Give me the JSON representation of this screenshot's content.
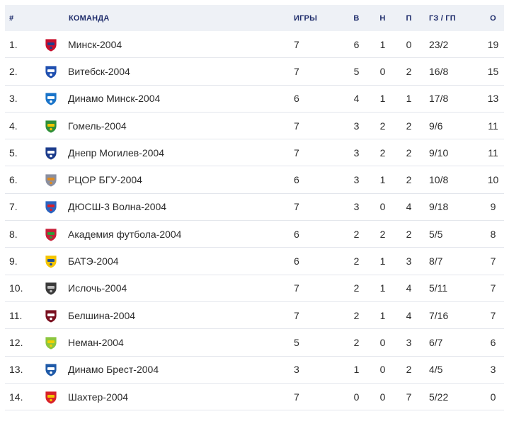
{
  "header": {
    "pos": "#",
    "team": "КОМАНДА",
    "games": "ИГРЫ",
    "wins": "В",
    "draws": "Н",
    "losses": "П",
    "goals": "ГЗ / ГП",
    "points": "О"
  },
  "rows": [
    {
      "pos": "1.",
      "team": "Минск-2004",
      "games": "7",
      "w": "6",
      "d": "1",
      "l": "0",
      "goals": "23/2",
      "pts": "19",
      "logo_color": "#c8102e",
      "logo_accent": "#1d3f8f",
      "logo_icon": "minsk-crest-icon"
    },
    {
      "pos": "2.",
      "team": "Витебск-2004",
      "games": "7",
      "w": "5",
      "d": "0",
      "l": "2",
      "goals": "16/8",
      "pts": "15",
      "logo_color": "#2050b0",
      "logo_accent": "#ffffff",
      "logo_icon": "vitebsk-crest-icon"
    },
    {
      "pos": "3.",
      "team": "Динамо Минск-2004",
      "games": "6",
      "w": "4",
      "d": "1",
      "l": "1",
      "goals": "17/8",
      "pts": "13",
      "logo_color": "#1a74c9",
      "logo_accent": "#ffffff",
      "logo_icon": "dinamo-minsk-crest-icon"
    },
    {
      "pos": "4.",
      "team": "Гомель-2004",
      "games": "7",
      "w": "3",
      "d": "2",
      "l": "2",
      "goals": "9/6",
      "pts": "11",
      "logo_color": "#2f8f3a",
      "logo_accent": "#f1c400",
      "logo_icon": "gomel-crest-icon"
    },
    {
      "pos": "5.",
      "team": "Днепр Могилев-2004",
      "games": "7",
      "w": "3",
      "d": "2",
      "l": "2",
      "goals": "9/10",
      "pts": "11",
      "logo_color": "#1c3c8c",
      "logo_accent": "#ffffff",
      "logo_icon": "dnepr-crest-icon"
    },
    {
      "pos": "6.",
      "team": "РЦОР БГУ-2004",
      "games": "6",
      "w": "3",
      "d": "1",
      "l": "2",
      "goals": "10/8",
      "pts": "10",
      "logo_color": "#8a8fa0",
      "logo_accent": "#e08a1e",
      "logo_icon": "rcor-bgu-crest-icon"
    },
    {
      "pos": "7.",
      "team": "ДЮСШ-3 Волна-2004",
      "games": "7",
      "w": "3",
      "d": "0",
      "l": "4",
      "goals": "9/18",
      "pts": "9",
      "logo_color": "#2a64c0",
      "logo_accent": "#d8202a",
      "logo_icon": "volna-crest-icon"
    },
    {
      "pos": "8.",
      "team": "Академия футбола-2004",
      "games": "6",
      "w": "2",
      "d": "2",
      "l": "2",
      "goals": "5/5",
      "pts": "8",
      "logo_color": "#c8203a",
      "logo_accent": "#2f9a3a",
      "logo_icon": "academy-crest-icon"
    },
    {
      "pos": "9.",
      "team": "БАТЭ-2004",
      "games": "6",
      "w": "2",
      "d": "1",
      "l": "3",
      "goals": "8/7",
      "pts": "7",
      "logo_color": "#f4c400",
      "logo_accent": "#1f4f9a",
      "logo_icon": "bate-crest-icon"
    },
    {
      "pos": "10.",
      "team": "Ислочь-2004",
      "games": "7",
      "w": "2",
      "d": "1",
      "l": "4",
      "goals": "5/11",
      "pts": "7",
      "logo_color": "#3a3a3a",
      "logo_accent": "#bdbdbd",
      "logo_icon": "isloch-crest-icon"
    },
    {
      "pos": "11.",
      "team": "Белшина-2004",
      "games": "7",
      "w": "2",
      "d": "1",
      "l": "4",
      "goals": "7/16",
      "pts": "7",
      "logo_color": "#7a1020",
      "logo_accent": "#ffffff",
      "logo_icon": "belshina-crest-icon"
    },
    {
      "pos": "12.",
      "team": "Неман-2004",
      "games": "5",
      "w": "2",
      "d": "0",
      "l": "3",
      "goals": "6/7",
      "pts": "6",
      "logo_color": "#8cc63f",
      "logo_accent": "#f1d000",
      "logo_icon": "neman-crest-icon"
    },
    {
      "pos": "13.",
      "team": "Динамо Брест-2004",
      "games": "3",
      "w": "1",
      "d": "0",
      "l": "2",
      "goals": "4/5",
      "pts": "3",
      "logo_color": "#1f5aa8",
      "logo_accent": "#ffffff",
      "logo_icon": "dinamo-brest-crest-icon"
    },
    {
      "pos": "14.",
      "team": "Шахтер-2004",
      "games": "7",
      "w": "0",
      "d": "0",
      "l": "7",
      "goals": "5/22",
      "pts": "0",
      "logo_color": "#d8202a",
      "logo_accent": "#f1c400",
      "logo_icon": "shakhtar-crest-icon"
    }
  ]
}
